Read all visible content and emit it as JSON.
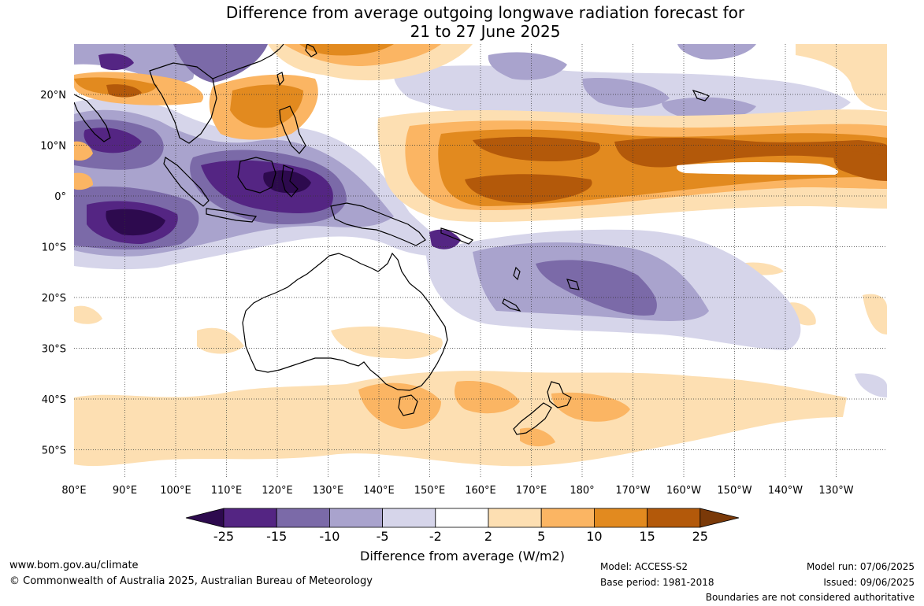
{
  "title": {
    "line1": "Difference from average outgoing longwave radiation forecast for",
    "line2": "21 to 27 June 2025"
  },
  "map": {
    "lon_labels": [
      "80°E",
      "90°E",
      "100°E",
      "110°E",
      "120°E",
      "130°E",
      "140°E",
      "150°E",
      "160°E",
      "170°E",
      "180°",
      "170°W",
      "160°W",
      "150°W",
      "140°W",
      "130°W"
    ],
    "lat_labels": [
      "20°N",
      "10°N",
      "0°",
      "10°S",
      "20°S",
      "30°S",
      "40°S",
      "50°S"
    ],
    "land_outlines": [
      "Australia",
      "New Zealand",
      "Maritime Continent",
      "Southeast Asia",
      "Pacific islands"
    ]
  },
  "colorbar": {
    "title": "Difference from average (W/m2)",
    "ticks": [
      "-25",
      "-15",
      "-10",
      "-5",
      "-2",
      "2",
      "5",
      "10",
      "15",
      "25"
    ],
    "colors": [
      "#2d0a4e",
      "#542583",
      "#7b6aa8",
      "#a9a3cd",
      "#d6d5ea",
      "#ffffff",
      "#fddfb2",
      "#fbb563",
      "#e28a1f",
      "#b3590a",
      "#7a3908"
    ]
  },
  "footer": {
    "website": "www.bom.gov.au/climate",
    "copyright": "© Commonwealth of Australia 2025, Australian Bureau of Meteorology",
    "model": "Model: ACCESS-S2",
    "base_period": "Base period: 1981-2018",
    "model_run": "Model run: 07/06/2025",
    "issued": "Issued: 09/06/2025",
    "disclaimer": "Boundaries are not considered authoritative"
  }
}
